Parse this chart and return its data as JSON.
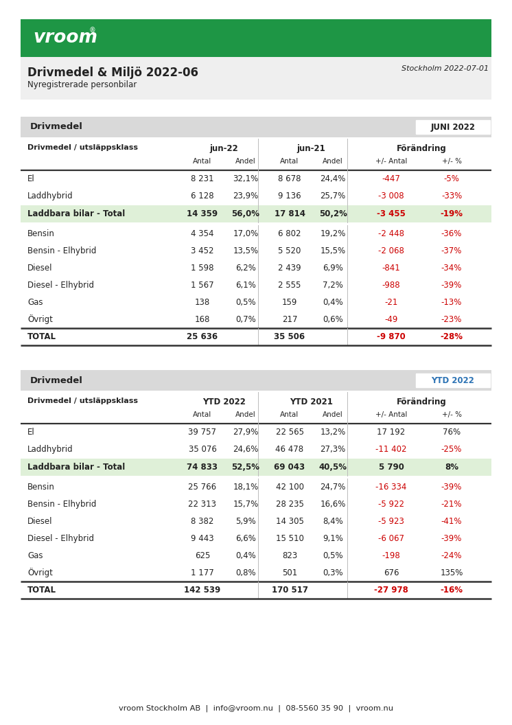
{
  "title": "Drivmedel & Miljö 2022-06",
  "subtitle": "Nyregistrerade personbilar",
  "date": "Stockholm 2022-07-01",
  "green_color": "#1e9645",
  "red_color": "#cc0000",
  "light_green_bg": "#dff0d8",
  "header_bg": "#d9d9d9",
  "white": "#ffffff",
  "light_gray": "#efefef",
  "table1_badge": "JUNI 2022",
  "table2_badge": "YTD 2022",
  "col1_header_juni": "jun-22",
  "col2_header_juni": "jun-21",
  "col1_header_ytd": "YTD 2022",
  "col2_header_ytd": "YTD 2021",
  "forandring": "Förändring",
  "drivmedel_label": "Drivmedel / utsläppsklass",
  "antal": "Antal",
  "andel": "Andel",
  "plus_minus_antal": "+/- Antal",
  "plus_minus_pct": "+/- %",
  "drivmedel_section": "Drivmedel",
  "juni_rows": [
    {
      "name": "El",
      "a22": "8 231",
      "s22": "32,1%",
      "a21": "8 678",
      "s21": "24,4%",
      "da": "-447",
      "dp": "-5%",
      "da_red": true,
      "dp_red": true,
      "total_row": false,
      "grand_total": false
    },
    {
      "name": "Laddhybrid",
      "a22": "6 128",
      "s22": "23,9%",
      "a21": "9 136",
      "s21": "25,7%",
      "da": "-3 008",
      "dp": "-33%",
      "da_red": true,
      "dp_red": true,
      "total_row": false,
      "grand_total": false
    },
    {
      "name": "Laddbara bilar - Total",
      "a22": "14 359",
      "s22": "56,0%",
      "a21": "17 814",
      "s21": "50,2%",
      "da": "-3 455",
      "dp": "-19%",
      "da_red": true,
      "dp_red": true,
      "total_row": true,
      "grand_total": false
    },
    {
      "name": "Bensin",
      "a22": "4 354",
      "s22": "17,0%",
      "a21": "6 802",
      "s21": "19,2%",
      "da": "-2 448",
      "dp": "-36%",
      "da_red": true,
      "dp_red": true,
      "total_row": false,
      "grand_total": false
    },
    {
      "name": "Bensin - Elhybrid",
      "a22": "3 452",
      "s22": "13,5%",
      "a21": "5 520",
      "s21": "15,5%",
      "da": "-2 068",
      "dp": "-37%",
      "da_red": true,
      "dp_red": true,
      "total_row": false,
      "grand_total": false
    },
    {
      "name": "Diesel",
      "a22": "1 598",
      "s22": "6,2%",
      "a21": "2 439",
      "s21": "6,9%",
      "da": "-841",
      "dp": "-34%",
      "da_red": true,
      "dp_red": true,
      "total_row": false,
      "grand_total": false
    },
    {
      "name": "Diesel - Elhybrid",
      "a22": "1 567",
      "s22": "6,1%",
      "a21": "2 555",
      "s21": "7,2%",
      "da": "-988",
      "dp": "-39%",
      "da_red": true,
      "dp_red": true,
      "total_row": false,
      "grand_total": false
    },
    {
      "name": "Gas",
      "a22": "138",
      "s22": "0,5%",
      "a21": "159",
      "s21": "0,4%",
      "da": "-21",
      "dp": "-13%",
      "da_red": true,
      "dp_red": true,
      "total_row": false,
      "grand_total": false
    },
    {
      "name": "Övrigt",
      "a22": "168",
      "s22": "0,7%",
      "a21": "217",
      "s21": "0,6%",
      "da": "-49",
      "dp": "-23%",
      "da_red": true,
      "dp_red": true,
      "total_row": false,
      "grand_total": false
    },
    {
      "name": "TOTAL",
      "a22": "25 636",
      "s22": "",
      "a21": "35 506",
      "s21": "",
      "da": "-9 870",
      "dp": "-28%",
      "da_red": true,
      "dp_red": true,
      "total_row": false,
      "grand_total": true
    }
  ],
  "ytd_rows": [
    {
      "name": "El",
      "a22": "39 757",
      "s22": "27,9%",
      "a21": "22 565",
      "s21": "13,2%",
      "da": "17 192",
      "dp": "76%",
      "da_red": false,
      "dp_red": false,
      "total_row": false,
      "grand_total": false
    },
    {
      "name": "Laddhybrid",
      "a22": "35 076",
      "s22": "24,6%",
      "a21": "46 478",
      "s21": "27,3%",
      "da": "-11 402",
      "dp": "-25%",
      "da_red": true,
      "dp_red": true,
      "total_row": false,
      "grand_total": false
    },
    {
      "name": "Laddbara bilar - Total",
      "a22": "74 833",
      "s22": "52,5%",
      "a21": "69 043",
      "s21": "40,5%",
      "da": "5 790",
      "dp": "8%",
      "da_red": false,
      "dp_red": false,
      "total_row": true,
      "grand_total": false
    },
    {
      "name": "Bensin",
      "a22": "25 766",
      "s22": "18,1%",
      "a21": "42 100",
      "s21": "24,7%",
      "da": "-16 334",
      "dp": "-39%",
      "da_red": true,
      "dp_red": true,
      "total_row": false,
      "grand_total": false
    },
    {
      "name": "Bensin - Elhybrid",
      "a22": "22 313",
      "s22": "15,7%",
      "a21": "28 235",
      "s21": "16,6%",
      "da": "-5 922",
      "dp": "-21%",
      "da_red": true,
      "dp_red": true,
      "total_row": false,
      "grand_total": false
    },
    {
      "name": "Diesel",
      "a22": "8 382",
      "s22": "5,9%",
      "a21": "14 305",
      "s21": "8,4%",
      "da": "-5 923",
      "dp": "-41%",
      "da_red": true,
      "dp_red": true,
      "total_row": false,
      "grand_total": false
    },
    {
      "name": "Diesel - Elhybrid",
      "a22": "9 443",
      "s22": "6,6%",
      "a21": "15 510",
      "s21": "9,1%",
      "da": "-6 067",
      "dp": "-39%",
      "da_red": true,
      "dp_red": true,
      "total_row": false,
      "grand_total": false
    },
    {
      "name": "Gas",
      "a22": "625",
      "s22": "0,4%",
      "a21": "823",
      "s21": "0,5%",
      "da": "-198",
      "dp": "-24%",
      "da_red": true,
      "dp_red": true,
      "total_row": false,
      "grand_total": false
    },
    {
      "name": "Övrigt",
      "a22": "1 177",
      "s22": "0,8%",
      "a21": "501",
      "s21": "0,3%",
      "da": "676",
      "dp": "135%",
      "da_red": false,
      "dp_red": false,
      "total_row": false,
      "grand_total": false
    },
    {
      "name": "TOTAL",
      "a22": "142 539",
      "s22": "",
      "a21": "170 517",
      "s21": "",
      "da": "-27 978",
      "dp": "-16%",
      "da_red": true,
      "dp_red": true,
      "total_row": false,
      "grand_total": true
    }
  ],
  "footer": "vroom Stockholm AB  |  info@vroom.nu  |  08-5560 35 90  |  vroom.nu"
}
